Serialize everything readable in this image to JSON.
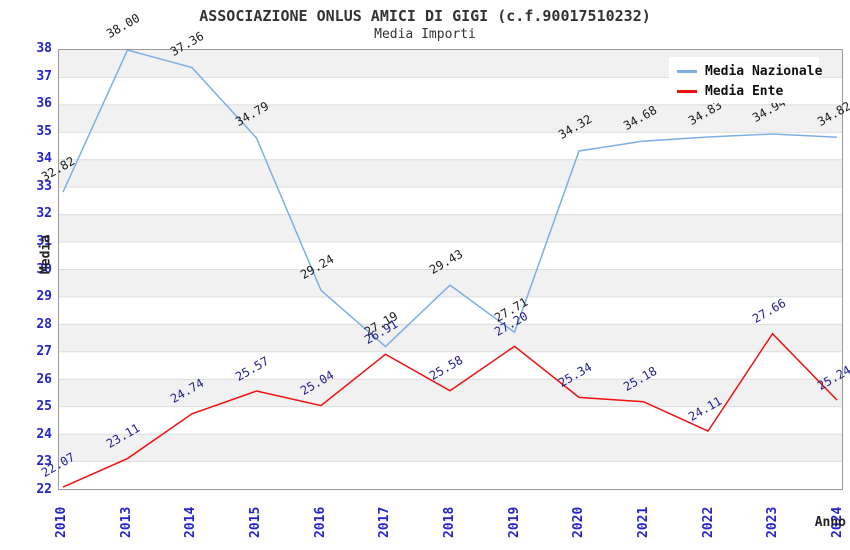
{
  "header": {
    "title": "ASSOCIAZIONE ONLUS AMICI DI GIGI (c.f.90017510232)",
    "subtitle": "Media Importi"
  },
  "chart_data": {
    "type": "line",
    "title": "ASSOCIAZIONE ONLUS AMICI DI GIGI (c.f.90017510232)",
    "subtitle": "Media Importi",
    "xlabel": "Anno",
    "ylabel": "Media",
    "categories": [
      "2010",
      "2013",
      "2014",
      "2015",
      "2016",
      "2017",
      "2018",
      "2019",
      "2020",
      "2021",
      "2022",
      "2023",
      "2024"
    ],
    "series": [
      {
        "name": "Media Nazionale",
        "color": "#7dafe4",
        "label_color": "#1c1c1c",
        "values": [
          32.82,
          38.0,
          37.36,
          34.79,
          29.24,
          27.19,
          29.43,
          27.71,
          34.32,
          34.68,
          34.83,
          34.94,
          34.82
        ]
      },
      {
        "name": "Media Ente",
        "color": "#f01010",
        "label_color": "#22228e",
        "values": [
          22.07,
          23.11,
          24.74,
          25.57,
          25.04,
          26.91,
          25.58,
          27.2,
          25.34,
          25.18,
          24.11,
          27.66,
          25.24
        ]
      }
    ],
    "ylim": [
      22,
      38
    ],
    "ytick_step": 1,
    "grid": true,
    "legend_position": "top-right",
    "axis_tick_color": "#2424cd",
    "band_colors": [
      "#ffffff",
      "#f1f1f1"
    ],
    "grid_color": "#dbdbdb"
  }
}
